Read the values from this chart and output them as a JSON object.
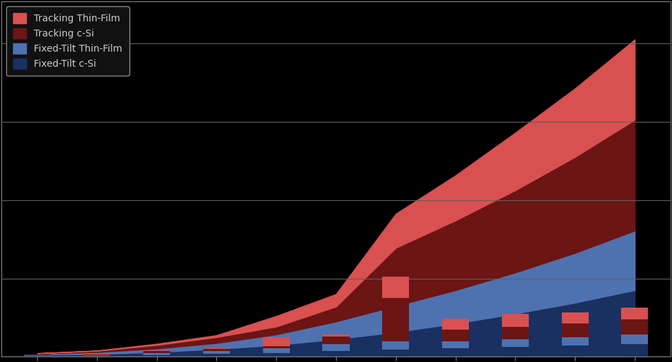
{
  "n_years": 11,
  "x": [
    1,
    2,
    3,
    4,
    5,
    6,
    7,
    8,
    9,
    10,
    11
  ],
  "annual_fixed_csi": [
    0.03,
    0.02,
    0.05,
    0.08,
    0.1,
    0.15,
    0.18,
    0.22,
    0.25,
    0.28,
    0.32
  ],
  "annual_fixed_thinfilm": [
    0.02,
    0.02,
    0.04,
    0.06,
    0.12,
    0.18,
    0.22,
    0.18,
    0.2,
    0.22,
    0.25
  ],
  "annual_track_csi": [
    0.01,
    0.02,
    0.06,
    0.06,
    0.05,
    0.18,
    1.1,
    0.3,
    0.32,
    0.35,
    0.38
  ],
  "annual_track_thinfilm": [
    0.0,
    0.01,
    0.02,
    0.02,
    0.22,
    0.05,
    0.55,
    0.28,
    0.32,
    0.28,
    0.3
  ],
  "cum_fixed_csi": [
    0.05,
    0.07,
    0.12,
    0.2,
    0.3,
    0.45,
    0.63,
    0.85,
    1.1,
    1.38,
    1.7
  ],
  "cum_fixed_thinfilm": [
    0.03,
    0.05,
    0.09,
    0.15,
    0.27,
    0.45,
    0.67,
    0.85,
    1.05,
    1.27,
    1.52
  ],
  "cum_track_csi": [
    0.01,
    0.03,
    0.09,
    0.15,
    0.2,
    0.38,
    1.48,
    1.78,
    2.1,
    2.45,
    2.83
  ],
  "cum_track_thinfilm": [
    0.0,
    0.01,
    0.03,
    0.05,
    0.27,
    0.32,
    0.87,
    1.15,
    1.47,
    1.75,
    2.05
  ],
  "color_fixed_csi": "#1a3060",
  "color_fixed_thinfilm": "#4e72b0",
  "color_track_csi": "#6b1515",
  "color_track_thinfilm": "#d95050",
  "background_color": "#000000",
  "grid_color": "#606060",
  "text_color": "#cccccc",
  "legend_labels": [
    "Tracking Thin-Film",
    "Tracking c-Si",
    "Fixed-Tilt Thin-Film",
    "Fixed-Tilt c-Si"
  ],
  "legend_bg": "#111111",
  "legend_edge": "#888888"
}
